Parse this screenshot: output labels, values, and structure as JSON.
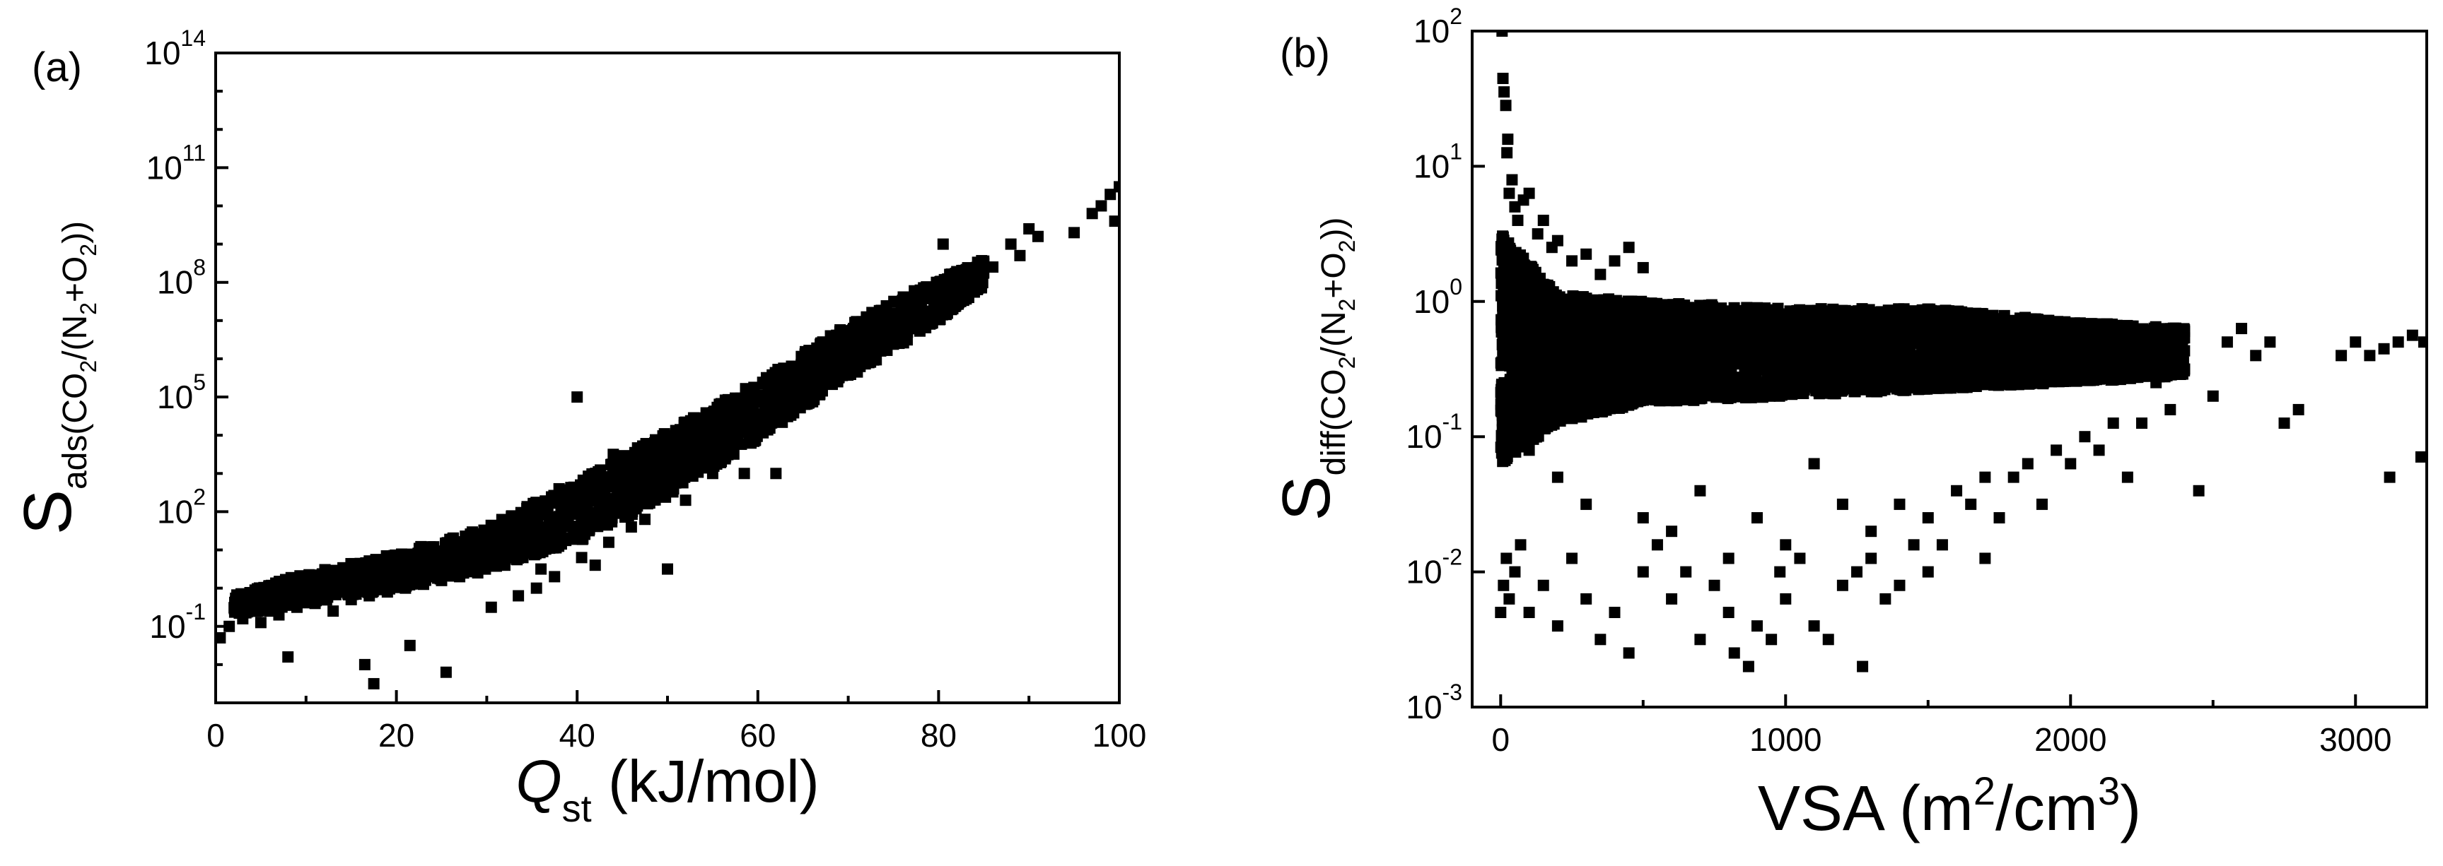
{
  "chart_data": [
    {
      "type": "scatter",
      "panel_label": "(a)",
      "x_scale": "linear",
      "y_scale": "log",
      "xlim": [
        0,
        100
      ],
      "ylim": [
        -3,
        14
      ],
      "x_ticks": [
        0,
        20,
        40,
        60,
        80,
        100
      ],
      "x_tick_labels": [
        "0",
        "20",
        "40",
        "60",
        "80",
        "100"
      ],
      "y_ticks": [
        -1,
        2,
        5,
        8,
        11,
        14
      ],
      "y_tick_labels": [
        {
          "base": "10",
          "exp": "-1"
        },
        {
          "base": "10",
          "exp": "2"
        },
        {
          "base": "10",
          "exp": "5"
        },
        {
          "base": "10",
          "exp": "8"
        },
        {
          "base": "10",
          "exp": "11"
        },
        {
          "base": "10",
          "exp": "14"
        }
      ],
      "xlabel": {
        "main": "Q",
        "sub": "st",
        "rest": " (kJ/mol)"
      },
      "ylabel": {
        "main": "S",
        "sub": "ads(CO",
        "sub2": "2",
        "sub3": "/(N",
        "sub4": "2",
        "sub5": "+O",
        "sub6": "2",
        "sub7": "))"
      },
      "marker": "square",
      "color": "#000000",
      "points": [
        [
          0.5,
          -1.3
        ],
        [
          1.5,
          -1.0
        ],
        [
          3,
          -0.8
        ],
        [
          4,
          -0.5
        ],
        [
          5,
          -0.9
        ],
        [
          6,
          -0.6
        ],
        [
          7,
          -0.7
        ],
        [
          8,
          -1.8
        ],
        [
          9,
          -0.5
        ],
        [
          10,
          -0.3
        ],
        [
          11,
          -0.4
        ],
        [
          12,
          -0.2
        ],
        [
          13,
          -0.6
        ],
        [
          14,
          -0.1
        ],
        [
          15,
          -0.3
        ],
        [
          16,
          0.0
        ],
        [
          16.5,
          -2.0
        ],
        [
          17,
          -0.2
        ],
        [
          17.5,
          -2.5
        ],
        [
          18,
          0.1
        ],
        [
          19,
          -0.1
        ],
        [
          20,
          0.2
        ],
        [
          21,
          0.0
        ],
        [
          21.5,
          -1.5
        ],
        [
          22,
          0.3
        ],
        [
          23,
          0.1
        ],
        [
          24,
          0.4
        ],
        [
          25,
          0.2
        ],
        [
          25.5,
          -2.2
        ],
        [
          26,
          0.5
        ],
        [
          27,
          0.3
        ],
        [
          28,
          0.6
        ],
        [
          29,
          0.4
        ],
        [
          30,
          0.7
        ],
        [
          30.5,
          -0.5
        ],
        [
          31,
          0.9
        ],
        [
          32,
          0.6
        ],
        [
          33,
          1.0
        ],
        [
          33.5,
          -0.2
        ],
        [
          34,
          0.8
        ],
        [
          35,
          1.2
        ],
        [
          35.5,
          0.0
        ],
        [
          36,
          1.0
        ],
        [
          37,
          1.4
        ],
        [
          37.5,
          0.3
        ],
        [
          38,
          1.3
        ],
        [
          39,
          1.7
        ],
        [
          40,
          1.5
        ],
        [
          40.5,
          0.8
        ],
        [
          41,
          2.0
        ],
        [
          42,
          1.8
        ],
        [
          43,
          2.3
        ],
        [
          43.5,
          1.2
        ],
        [
          44,
          2.1
        ],
        [
          45,
          2.6
        ],
        [
          46,
          2.4
        ],
        [
          47,
          2.9
        ],
        [
          47.5,
          1.8
        ],
        [
          48,
          2.7
        ],
        [
          49,
          3.2
        ],
        [
          50,
          0.5
        ],
        [
          50.5,
          3.0
        ],
        [
          51,
          3.5
        ],
        [
          52,
          3.3
        ],
        [
          53,
          3.8
        ],
        [
          54,
          3.6
        ],
        [
          55,
          4.1
        ],
        [
          56,
          3.9
        ],
        [
          57,
          4.4
        ],
        [
          58,
          4.2
        ],
        [
          58.5,
          3.0
        ],
        [
          59,
          4.7
        ],
        [
          60,
          4.5
        ],
        [
          61,
          5.0
        ],
        [
          62,
          4.8
        ],
        [
          63,
          5.3
        ],
        [
          64,
          5.1
        ],
        [
          65,
          5.6
        ],
        [
          66,
          5.4
        ],
        [
          67,
          5.9
        ],
        [
          68,
          5.7
        ],
        [
          69,
          6.2
        ],
        [
          70,
          6.0
        ],
        [
          71,
          6.5
        ],
        [
          72,
          6.3
        ],
        [
          73,
          6.8
        ],
        [
          74,
          6.6
        ],
        [
          75,
          7.1
        ],
        [
          76,
          6.9
        ],
        [
          77,
          7.4
        ],
        [
          78,
          7.2
        ],
        [
          79,
          7.7
        ],
        [
          80,
          7.5
        ],
        [
          80.5,
          9.0
        ],
        [
          81,
          7.9
        ],
        [
          82,
          8.0
        ],
        [
          83,
          8.2
        ],
        [
          84,
          8.1
        ],
        [
          85,
          8.5
        ],
        [
          86,
          8.4
        ],
        [
          88,
          9.0
        ],
        [
          89,
          8.7
        ],
        [
          90,
          9.4
        ],
        [
          91,
          9.2
        ],
        [
          95,
          9.3
        ],
        [
          97,
          9.8
        ],
        [
          98,
          10.0
        ],
        [
          99,
          10.3
        ],
        [
          99.5,
          9.6
        ],
        [
          100,
          10.5
        ],
        [
          40,
          5.0
        ],
        [
          38,
          2.6
        ],
        [
          44,
          3.5
        ],
        [
          62,
          3.0
        ],
        [
          55,
          3.0
        ],
        [
          36,
          0.5
        ],
        [
          42,
          0.6
        ],
        [
          46,
          1.6
        ],
        [
          52,
          2.3
        ],
        [
          34,
          1.9
        ]
      ],
      "band": [
        [
          2,
          -0.7,
          -0.2
        ],
        [
          10,
          -0.4,
          0.4
        ],
        [
          20,
          0.0,
          0.9
        ],
        [
          30,
          0.5,
          1.6
        ],
        [
          40,
          1.2,
          2.8
        ],
        [
          50,
          2.4,
          4.1
        ],
        [
          60,
          3.9,
          5.4
        ],
        [
          70,
          5.5,
          6.9
        ],
        [
          80,
          7.0,
          8.1
        ],
        [
          85,
          7.9,
          8.6
        ]
      ]
    },
    {
      "type": "scatter",
      "panel_label": "(b)",
      "x_scale": "linear",
      "y_scale": "log",
      "xlim": [
        -100,
        3250
      ],
      "ylim": [
        -3,
        2
      ],
      "x_ticks": [
        0,
        1000,
        2000,
        3000
      ],
      "x_tick_labels": [
        "0",
        "1000",
        "2000",
        "3000"
      ],
      "y_ticks": [
        -3,
        -2,
        -1,
        0,
        1,
        2
      ],
      "y_tick_labels": [
        {
          "base": "10",
          "exp": "-3"
        },
        {
          "base": "10",
          "exp": "-2"
        },
        {
          "base": "10",
          "exp": "-1"
        },
        {
          "base": "10",
          "exp": "0"
        },
        {
          "base": "10",
          "exp": "1"
        },
        {
          "base": "10",
          "exp": "2"
        }
      ],
      "xlabel": {
        "main": "VSA (m",
        "sup": "2",
        "mid": "/cm",
        "sup2": "3",
        "end": ")"
      },
      "ylabel": {
        "main": "S",
        "sub": "diff(CO",
        "sub2": "2",
        "sub3": "/(N",
        "sub4": "2",
        "sub5": "+O",
        "sub6": "2",
        "sub7": "))"
      },
      "marker": "square",
      "color": "#000000",
      "points": [
        [
          5,
          2.0
        ],
        [
          8,
          1.65
        ],
        [
          12,
          1.55
        ],
        [
          18,
          1.45
        ],
        [
          22,
          1.1
        ],
        [
          25,
          1.2
        ],
        [
          30,
          0.8
        ],
        [
          40,
          0.9
        ],
        [
          50,
          0.7
        ],
        [
          60,
          0.6
        ],
        [
          80,
          0.75
        ],
        [
          100,
          0.8
        ],
        [
          130,
          0.5
        ],
        [
          150,
          0.6
        ],
        [
          180,
          0.4
        ],
        [
          200,
          0.45
        ],
        [
          250,
          0.3
        ],
        [
          300,
          0.35
        ],
        [
          350,
          0.2
        ],
        [
          400,
          0.3
        ],
        [
          450,
          0.4
        ],
        [
          500,
          0.25
        ],
        [
          0,
          -2.3
        ],
        [
          10,
          -2.1
        ],
        [
          20,
          -1.9
        ],
        [
          30,
          -2.2
        ],
        [
          50,
          -2.0
        ],
        [
          70,
          -1.8
        ],
        [
          100,
          -2.3
        ],
        [
          150,
          -2.1
        ],
        [
          200,
          -2.4
        ],
        [
          250,
          -1.9
        ],
        [
          300,
          -2.2
        ],
        [
          350,
          -2.5
        ],
        [
          400,
          -2.3
        ],
        [
          450,
          -2.6
        ],
        [
          500,
          -2.0
        ],
        [
          550,
          -1.8
        ],
        [
          600,
          -2.2
        ],
        [
          650,
          -2.0
        ],
        [
          700,
          -2.5
        ],
        [
          750,
          -2.1
        ],
        [
          800,
          -2.3
        ],
        [
          820,
          -2.6
        ],
        [
          870,
          -2.7
        ],
        [
          900,
          -2.4
        ],
        [
          950,
          -2.5
        ],
        [
          980,
          -2.0
        ],
        [
          1000,
          -2.2
        ],
        [
          1050,
          -1.9
        ],
        [
          1100,
          -2.4
        ],
        [
          1150,
          -2.5
        ],
        [
          1200,
          -2.1
        ],
        [
          1250,
          -2.0
        ],
        [
          1270,
          -2.7
        ],
        [
          1300,
          -1.9
        ],
        [
          1350,
          -2.2
        ],
        [
          1400,
          -2.1
        ],
        [
          1450,
          -1.8
        ],
        [
          1500,
          -1.6
        ],
        [
          1550,
          -1.8
        ],
        [
          1600,
          -1.4
        ],
        [
          1650,
          -1.5
        ],
        [
          1700,
          -1.3
        ],
        [
          1750,
          -1.6
        ],
        [
          1800,
          -1.3
        ],
        [
          1850,
          -1.2
        ],
        [
          1900,
          -1.5
        ],
        [
          1950,
          -1.1
        ],
        [
          2000,
          -1.2
        ],
        [
          2050,
          -1.0
        ],
        [
          2100,
          -1.1
        ],
        [
          2150,
          -0.9
        ],
        [
          2200,
          -1.3
        ],
        [
          2250,
          -0.9
        ],
        [
          2300,
          -0.6
        ],
        [
          2350,
          -0.8
        ],
        [
          2400,
          -0.5
        ],
        [
          2450,
          -1.4
        ],
        [
          2500,
          -0.7
        ],
        [
          2550,
          -0.3
        ],
        [
          2600,
          -0.2
        ],
        [
          2650,
          -0.4
        ],
        [
          2700,
          -0.3
        ],
        [
          2750,
          -0.9
        ],
        [
          2800,
          -0.8
        ],
        [
          2950,
          -0.4
        ],
        [
          3000,
          -0.3
        ],
        [
          3050,
          -0.4
        ],
        [
          3100,
          -0.35
        ],
        [
          3120,
          -1.3
        ],
        [
          3150,
          -0.3
        ],
        [
          3200,
          -0.25
        ],
        [
          3230,
          -1.15
        ],
        [
          3240,
          -0.3
        ],
        [
          1200,
          -1.5
        ],
        [
          1100,
          -1.2
        ],
        [
          900,
          -1.6
        ],
        [
          700,
          -1.4
        ],
        [
          600,
          -1.7
        ],
        [
          1400,
          -1.5
        ],
        [
          1500,
          -2.0
        ],
        [
          1700,
          -1.9
        ],
        [
          1300,
          -1.7
        ],
        [
          1000,
          -1.8
        ],
        [
          800,
          -1.9
        ],
        [
          500,
          -1.6
        ],
        [
          300,
          -1.5
        ],
        [
          200,
          -1.3
        ],
        [
          100,
          -1.1
        ]
      ],
      "band": [
        [
          0,
          -1.2,
          0.5
        ],
        [
          200,
          -0.9,
          0.05
        ],
        [
          500,
          -0.75,
          0.0
        ],
        [
          1000,
          -0.7,
          -0.05
        ],
        [
          1500,
          -0.65,
          -0.05
        ],
        [
          2000,
          -0.6,
          -0.15
        ],
        [
          2400,
          -0.55,
          -0.2
        ]
      ]
    }
  ]
}
